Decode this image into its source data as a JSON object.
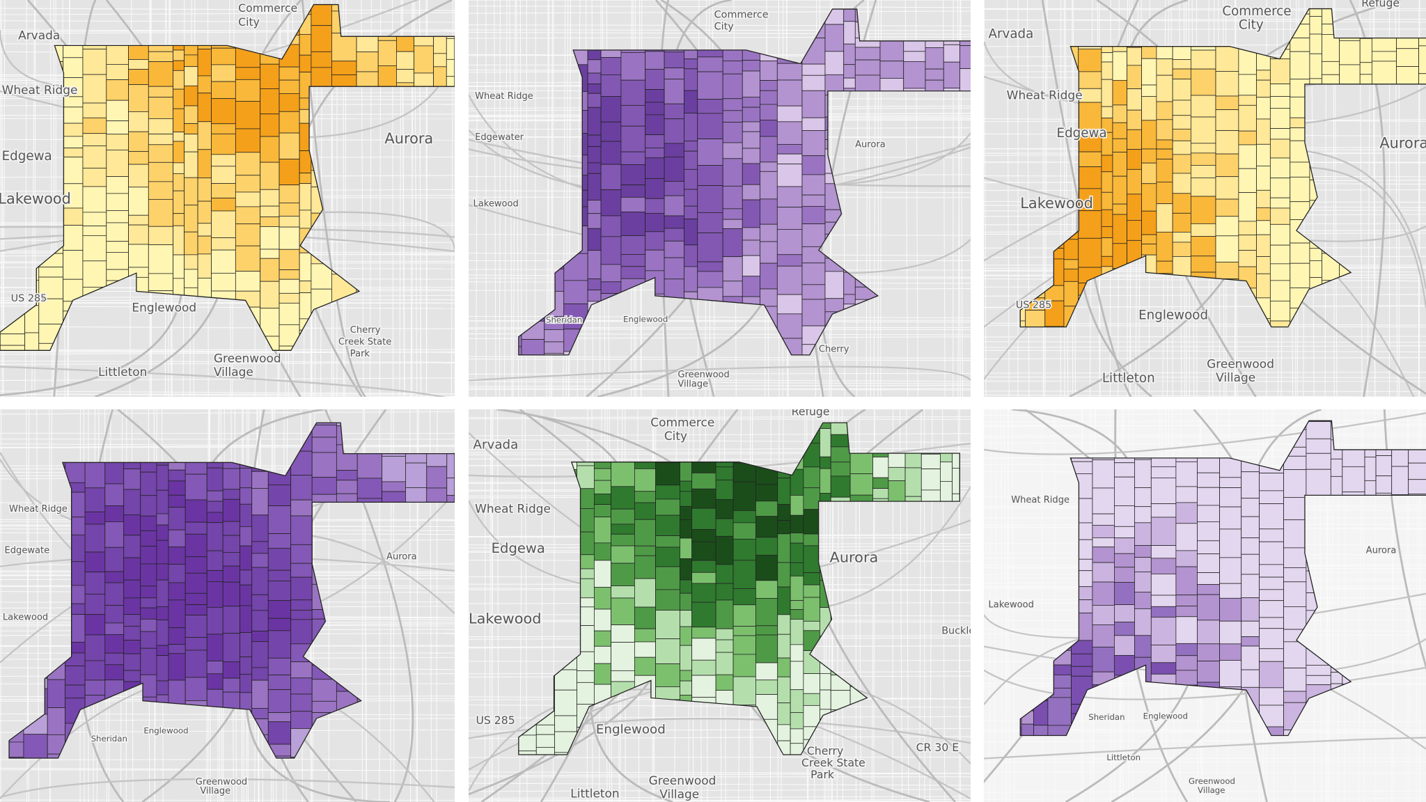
{
  "maps": [
    {
      "palette": [
        "#fff6b3",
        "#ffe897",
        "#fdd26a",
        "#f9b83a",
        "#f5a01a"
      ],
      "labels": [
        "Arvada",
        "Commerce",
        "City",
        "Wheat Ridge",
        "Edgewa",
        "Aurora",
        "Lakewood",
        "US 285",
        "Englewood",
        "Greenwood",
        "Village",
        "Littleton",
        "Cherry",
        "Creek State",
        "Park"
      ]
    },
    {
      "palette": [
        "#d9c6e8",
        "#b393d0",
        "#9a74c2",
        "#8358b3",
        "#6b3fa0"
      ],
      "labels": [
        "Commerce",
        "City",
        "Wheat Ridge",
        "Edgewater",
        "Aurora",
        "Lakewood",
        "Sheridan",
        "Englewood",
        "Greenwood",
        "Village",
        "Cherry"
      ]
    },
    {
      "palette": [
        "#fff6b3",
        "#ffe897",
        "#fdd26a",
        "#f9b83a",
        "#f5a01a"
      ],
      "labels": [
        "Arvada",
        "Commerce",
        "City",
        "Wheat Ridge",
        "Edgewa",
        "Aurora",
        "Lakewood",
        "US 285",
        "Englewood",
        "Greenwood",
        "Village",
        "Littleton",
        "Refuge"
      ]
    },
    {
      "palette": [
        "#b9a0d8",
        "#9a74c2",
        "#8458b6",
        "#7445aa",
        "#6a35a3"
      ],
      "labels": [
        "Wheat Ridge",
        "Edgewate",
        "Aurora",
        "Lakewood",
        "Sheridan",
        "Englewood",
        "Greenwood",
        "Village"
      ]
    },
    {
      "palette": [
        "#e4f3df",
        "#b4dfac",
        "#7cc06e",
        "#4f9a47",
        "#2f7a2f",
        "#1b4d1b"
      ],
      "labels": [
        "Arvada",
        "Commerce",
        "City",
        "Refuge",
        "Wheat Ridge",
        "Edgewa",
        "Aurora",
        "Lakewood",
        "US 285",
        "Englewood",
        "Greenwood",
        "Village",
        "Littleton",
        "CR 30 E",
        "Cherry",
        "Creek State",
        "Park",
        "Buckley"
      ]
    },
    {
      "palette": [
        "#e3d6ef",
        "#cbb4e0",
        "#b393d0",
        "#9470c0",
        "#7a4fb0"
      ],
      "labels": [
        "Wheat Ridge",
        "Lakewood",
        "Aurora",
        "Sheridan",
        "Englewood",
        "Littleton",
        "Greenwood",
        "Village"
      ]
    }
  ]
}
